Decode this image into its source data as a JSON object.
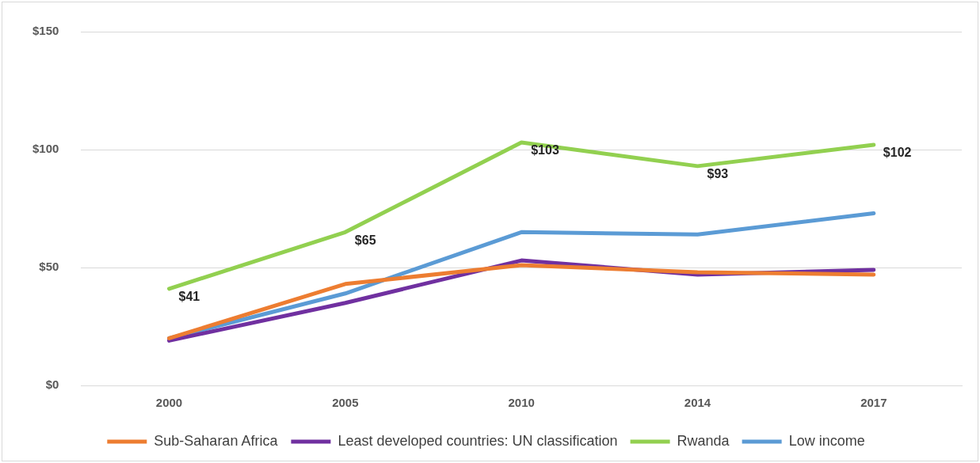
{
  "chart_data": {
    "type": "line",
    "categories": [
      "2000",
      "2005",
      "2010",
      "2014",
      "2017"
    ],
    "series": [
      {
        "name": "Sub-Saharan Africa",
        "color": "#ed7d31",
        "values": [
          20,
          43,
          51,
          48,
          47
        ]
      },
      {
        "name": "Least developed countries: UN classification",
        "color": "#7030a0",
        "values": [
          19,
          35,
          53,
          47,
          49
        ]
      },
      {
        "name": "Rwanda",
        "color": "#92d050",
        "values": [
          41,
          65,
          103,
          93,
          102
        ],
        "value_labels": [
          "$41",
          "$65",
          "$103",
          "$93",
          "$102"
        ]
      },
      {
        "name": "Low income",
        "color": "#5b9bd5",
        "values": [
          20,
          39,
          65,
          64,
          73
        ]
      }
    ],
    "ylim": [
      0,
      150
    ],
    "yticks": [
      {
        "value": 0,
        "label": "$0"
      },
      {
        "value": 50,
        "label": "$50"
      },
      {
        "value": 100,
        "label": "$100"
      },
      {
        "value": 150,
        "label": "$150"
      }
    ],
    "grid": "y",
    "legend": "bottom",
    "marker": "none",
    "line_style": "solid"
  }
}
